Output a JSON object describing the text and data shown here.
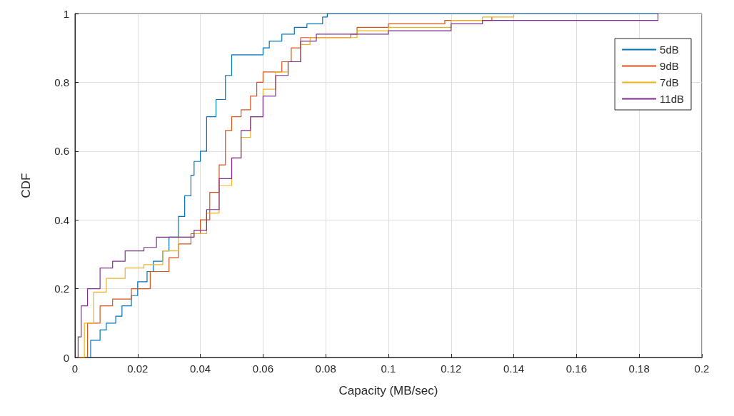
{
  "chart_data": {
    "type": "step",
    "xlabel": "Capacity (MB/sec)",
    "ylabel": "CDF",
    "xlim": [
      0,
      0.2
    ],
    "ylim": [
      0,
      1
    ],
    "xticks": [
      0,
      0.02,
      0.04,
      0.06,
      0.08,
      0.1,
      0.12,
      0.14,
      0.16,
      0.18,
      0.2
    ],
    "yticks": [
      0,
      0.2,
      0.4,
      0.6,
      0.8,
      1
    ],
    "grid": true,
    "legend": "top right",
    "line_style": "solid",
    "marker": "none",
    "series": [
      {
        "name": "5dB",
        "color": "#0072bd",
        "x": [
          0.003,
          0.005,
          0.008,
          0.01,
          0.013,
          0.015,
          0.018,
          0.02,
          0.023,
          0.025,
          0.028,
          0.03,
          0.033,
          0.035,
          0.037,
          0.038,
          0.04,
          0.042,
          0.045,
          0.048,
          0.05,
          0.057,
          0.06,
          0.062,
          0.066,
          0.07,
          0.074,
          0.079,
          0.0805,
          0.186
        ],
        "values": [
          0,
          0.05,
          0.08,
          0.1,
          0.12,
          0.15,
          0.18,
          0.22,
          0.25,
          0.28,
          0.31,
          0.35,
          0.41,
          0.47,
          0.53,
          0.57,
          0.6,
          0.7,
          0.75,
          0.82,
          0.88,
          0.88,
          0.9,
          0.92,
          0.94,
          0.96,
          0.97,
          0.99,
          1,
          1
        ]
      },
      {
        "name": "9dB",
        "color": "#d95319",
        "x": [
          0.002,
          0.004,
          0.008,
          0.012,
          0.018,
          0.024,
          0.03,
          0.033,
          0.037,
          0.04,
          0.043,
          0.046,
          0.048,
          0.05,
          0.053,
          0.056,
          0.058,
          0.06,
          0.066,
          0.069,
          0.072,
          0.088,
          0.09,
          0.1,
          0.118,
          0.133
        ],
        "values": [
          0,
          0.1,
          0.15,
          0.17,
          0.2,
          0.25,
          0.29,
          0.33,
          0.36,
          0.4,
          0.48,
          0.56,
          0.66,
          0.7,
          0.72,
          0.76,
          0.8,
          0.83,
          0.86,
          0.9,
          0.93,
          0.94,
          0.96,
          0.97,
          0.98,
          0.99
        ]
      },
      {
        "name": "7dB",
        "color": "#edb120",
        "x": [
          0.001,
          0.003,
          0.006,
          0.01,
          0.016,
          0.022,
          0.028,
          0.033,
          0.038,
          0.042,
          0.046,
          0.05,
          0.053,
          0.056,
          0.06,
          0.064,
          0.068,
          0.072,
          0.075,
          0.09,
          0.1,
          0.12,
          0.13,
          0.14
        ],
        "values": [
          0,
          0.1,
          0.19,
          0.23,
          0.26,
          0.27,
          0.31,
          0.35,
          0.36,
          0.42,
          0.5,
          0.58,
          0.64,
          0.7,
          0.78,
          0.83,
          0.86,
          0.91,
          0.93,
          0.95,
          0.96,
          0.98,
          0.99,
          1
        ]
      },
      {
        "name": "11dB",
        "color": "#7e2f8e",
        "x": [
          0.0005,
          0.001,
          0.002,
          0.004,
          0.008,
          0.012,
          0.016,
          0.022,
          0.026,
          0.034,
          0.038,
          0.042,
          0.046,
          0.05,
          0.053,
          0.056,
          0.06,
          0.064,
          0.068,
          0.072,
          0.077,
          0.1,
          0.12,
          0.13,
          0.186
        ],
        "values": [
          0,
          0.06,
          0.15,
          0.2,
          0.26,
          0.28,
          0.31,
          0.32,
          0.35,
          0.35,
          0.37,
          0.43,
          0.52,
          0.58,
          0.66,
          0.7,
          0.76,
          0.82,
          0.86,
          0.92,
          0.94,
          0.95,
          0.97,
          0.98,
          1
        ]
      }
    ]
  }
}
